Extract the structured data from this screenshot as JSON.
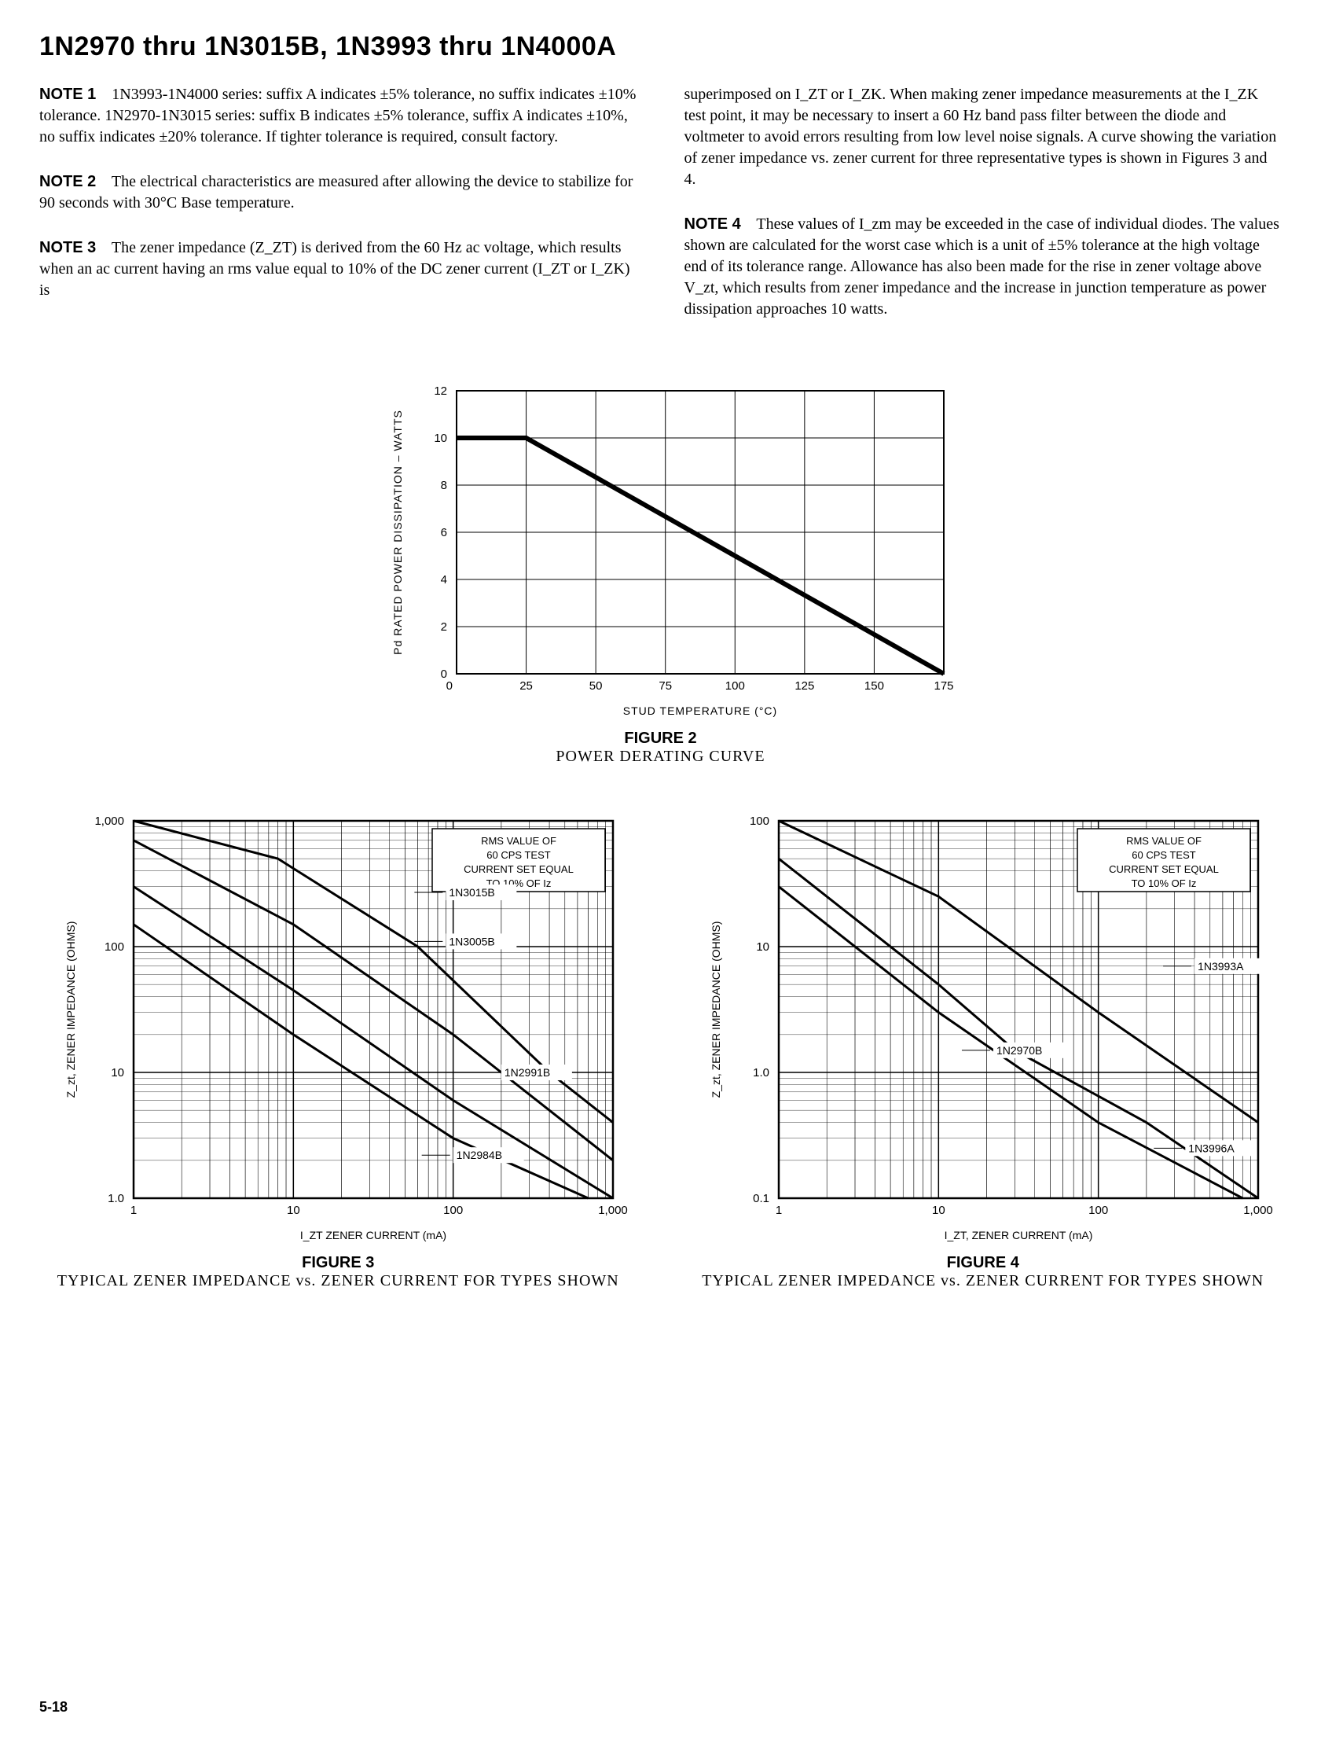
{
  "title": "1N2970 thru 1N3015B, 1N3993 thru 1N4000A",
  "page_number": "5-18",
  "notes": {
    "n1_label": "NOTE 1",
    "n1_text": "1N3993-1N4000 series: suffix A indicates ±5% tolerance, no suffix indicates ±10% tolerance. 1N2970-1N3015 series: suffix B indicates ±5% tolerance, suffix A indicates ±10%, no suffix indicates ±20% tolerance. If tighter tolerance is required, consult factory.",
    "n2_label": "NOTE 2",
    "n2_text": "The electrical characteristics are measured after allowing the device to stabilize for 90 seconds with 30°C Base temperature.",
    "n3_label": "NOTE 3",
    "n3_text": "The zener impedance (Z_ZT) is derived from the 60 Hz ac voltage, which results when an ac current having an rms value equal to 10% of the DC zener current (I_ZT or I_ZK) is",
    "n3_cont": "superimposed on I_ZT or I_ZK. When making zener impedance measurements at the I_ZK test point, it may be necessary to insert a 60 Hz band pass filter between the diode and voltmeter to avoid errors resulting from low level noise signals. A curve showing the variation of zener impedance vs. zener current for three representative types is shown in Figures 3 and 4.",
    "n4_label": "NOTE 4",
    "n4_text": "These values of I_zm may be exceeded in the case of individual diodes. The values shown are calculated for the worst case which is a unit of ±5% tolerance at the high voltage end of its tolerance range. Allowance has also been made for the rise in zener voltage above V_zt, which results from zener impedance and the increase in junction temperature as power dissipation approaches 10 watts."
  },
  "figure2": {
    "type": "line",
    "title": "FIGURE 2",
    "subtitle": "POWER DERATING CURVE",
    "xlabel": "STUD TEMPERATURE (°C)",
    "ylabel": "Pd RATED POWER DISSIPATION – WATTS",
    "xlim": [
      0,
      175
    ],
    "xtick_step": 25,
    "ylim": [
      0,
      12
    ],
    "ytick_step": 2,
    "grid_color": "#000000",
    "line_color": "#000000",
    "line_width": 3,
    "data": [
      {
        "x": 0,
        "y": 10
      },
      {
        "x": 25,
        "y": 10
      },
      {
        "x": 175,
        "y": 0
      }
    ]
  },
  "figure3": {
    "type": "loglog",
    "title": "FIGURE 3",
    "subtitle": "TYPICAL ZENER IMPEDANCE vs. ZENER CURRENT FOR TYPES SHOWN",
    "xlabel": "I_ZT ZENER CURRENT (mA)",
    "ylabel": "Z_zt, ZENER IMPEDANCE (OHMS)",
    "xlim": [
      1,
      1000
    ],
    "ylim": [
      1.0,
      1000
    ],
    "xticks": [
      "1",
      "10",
      "100",
      "1,000"
    ],
    "yticks": [
      "1.0",
      "10",
      "100",
      "1,000"
    ],
    "note_box": "RMS VALUE OF\n60 CPS TEST\nCURRENT SET EQUAL\nTO 10% OF Iz",
    "line_color": "#000000",
    "line_width": 3,
    "series": [
      {
        "label": "1N3015B",
        "points": [
          [
            1,
            1000
          ],
          [
            8,
            500
          ],
          [
            60,
            100
          ],
          [
            400,
            10
          ],
          [
            1000,
            4
          ]
        ]
      },
      {
        "label": "1N3005B",
        "points": [
          [
            1,
            700
          ],
          [
            10,
            150
          ],
          [
            100,
            20
          ],
          [
            1000,
            2
          ]
        ]
      },
      {
        "label": "1N2991B",
        "points": [
          [
            1,
            300
          ],
          [
            10,
            45
          ],
          [
            100,
            6
          ],
          [
            1000,
            1.0
          ]
        ]
      },
      {
        "label": "1N2984B",
        "points": [
          [
            1,
            150
          ],
          [
            10,
            20
          ],
          [
            100,
            3
          ],
          [
            700,
            1.0
          ]
        ]
      }
    ],
    "label_positions": {
      "1N3015B": [
        90,
        270
      ],
      "1N3005B": [
        90,
        110
      ],
      "1N2991B": [
        200,
        10
      ],
      "1N2984B": [
        100,
        2.2
      ]
    }
  },
  "figure4": {
    "type": "loglog",
    "title": "FIGURE 4",
    "subtitle": "TYPICAL ZENER IMPEDANCE vs. ZENER CURRENT FOR TYPES SHOWN",
    "xlabel": "I_ZT, ZENER CURRENT (mA)",
    "ylabel": "Z_zt, ZENER IMPEDANCE (OHMS)",
    "xlim": [
      1,
      1000
    ],
    "ylim": [
      0.1,
      100
    ],
    "xticks": [
      "1",
      "10",
      "100",
      "1,000"
    ],
    "yticks": [
      "0.1",
      "1.0",
      "10",
      "100"
    ],
    "note_box": "RMS VALUE OF\n60 CPS TEST\nCURRENT SET EQUAL\nTO 10% OF Iz",
    "line_color": "#000000",
    "line_width": 3,
    "series": [
      {
        "label": "1N3993A",
        "points": [
          [
            1,
            100
          ],
          [
            10,
            25
          ],
          [
            100,
            3
          ],
          [
            1000,
            0.4
          ]
        ]
      },
      {
        "label": "1N2970B",
        "points": [
          [
            1,
            50
          ],
          [
            10,
            5
          ],
          [
            30,
            1.5
          ],
          [
            200,
            0.4
          ],
          [
            1000,
            0.1
          ]
        ]
      },
      {
        "label": "1N3996A",
        "points": [
          [
            1,
            30
          ],
          [
            10,
            3
          ],
          [
            100,
            0.4
          ],
          [
            800,
            0.1
          ]
        ]
      }
    ],
    "label_positions": {
      "1N3993A": [
        400,
        7
      ],
      "1N2970B": [
        22,
        1.5
      ],
      "1N3996A": [
        350,
        0.25
      ]
    }
  }
}
